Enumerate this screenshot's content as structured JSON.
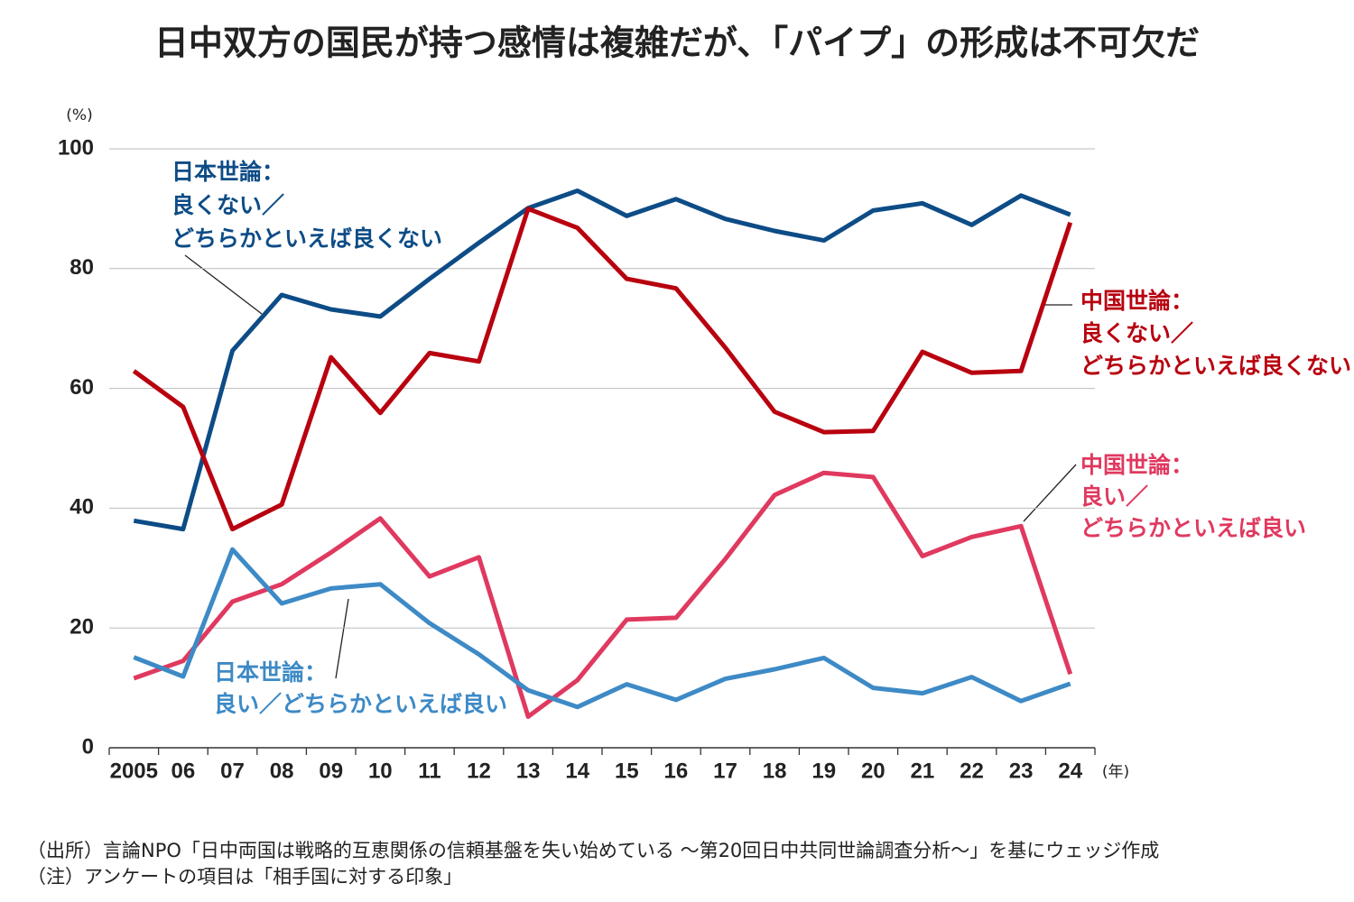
{
  "chart_data": {
    "type": "line",
    "title": "日中双方の国民が持つ感情は複雑だが、「パイプ」の形成は不可欠だ",
    "y_unit": "(%)",
    "x_unit": "(年)",
    "categories": [
      "2005",
      "06",
      "07",
      "08",
      "09",
      "10",
      "11",
      "12",
      "13",
      "14",
      "15",
      "16",
      "17",
      "18",
      "19",
      "20",
      "21",
      "22",
      "23",
      "24"
    ],
    "ylim": [
      0,
      100
    ],
    "yticks": [
      0,
      20,
      40,
      60,
      80,
      100
    ],
    "grid": true,
    "series": [
      {
        "name": [
          "日本世論：",
          "良くない／",
          "どちらかといえば良くない"
        ],
        "color": "#0d4c86",
        "values": [
          37.9,
          36.5,
          66.3,
          75.6,
          73.2,
          72.0,
          78.3,
          84.3,
          90.1,
          93.0,
          88.8,
          91.6,
          88.3,
          86.3,
          84.7,
          89.7,
          90.9,
          87.3,
          92.2,
          89.0
        ]
      },
      {
        "name": [
          "中国世論：",
          "良くない／",
          "どちらかといえば良くない"
        ],
        "color": "#b8000f",
        "values": [
          62.9,
          56.9,
          36.5,
          40.6,
          65.2,
          55.9,
          65.9,
          64.5,
          90.0,
          86.8,
          78.3,
          76.7,
          66.8,
          56.1,
          52.7,
          52.9,
          66.1,
          62.6,
          62.9,
          87.7
        ]
      },
      {
        "name": [
          "中国世論：",
          "良い／",
          "どちらかといえば良い"
        ],
        "color": "#e0395f",
        "values": [
          11.6,
          14.5,
          24.4,
          27.3,
          32.6,
          38.3,
          28.6,
          31.8,
          5.2,
          11.3,
          21.4,
          21.7,
          31.5,
          42.2,
          45.9,
          45.2,
          32.0,
          35.2,
          37.0,
          12.3
        ]
      },
      {
        "name": [
          "日本世論：",
          "良い／どちらかといえば良い"
        ],
        "color": "#3d8ac6",
        "values": [
          15.1,
          11.9,
          33.1,
          24.1,
          26.6,
          27.3,
          20.8,
          15.6,
          9.6,
          6.8,
          10.6,
          8.0,
          11.5,
          13.1,
          15.0,
          10.0,
          9.1,
          11.8,
          7.8,
          10.7
        ]
      }
    ],
    "notes": [
      "（出所）言論NPO「日中両国は戦略的互恵関係の信頼基盤を失い始めている 〜第20回日中共同世論調査分析〜」を基にウェッジ作成",
      "（注）アンケートの項目は「相手国に対する印象」"
    ]
  }
}
